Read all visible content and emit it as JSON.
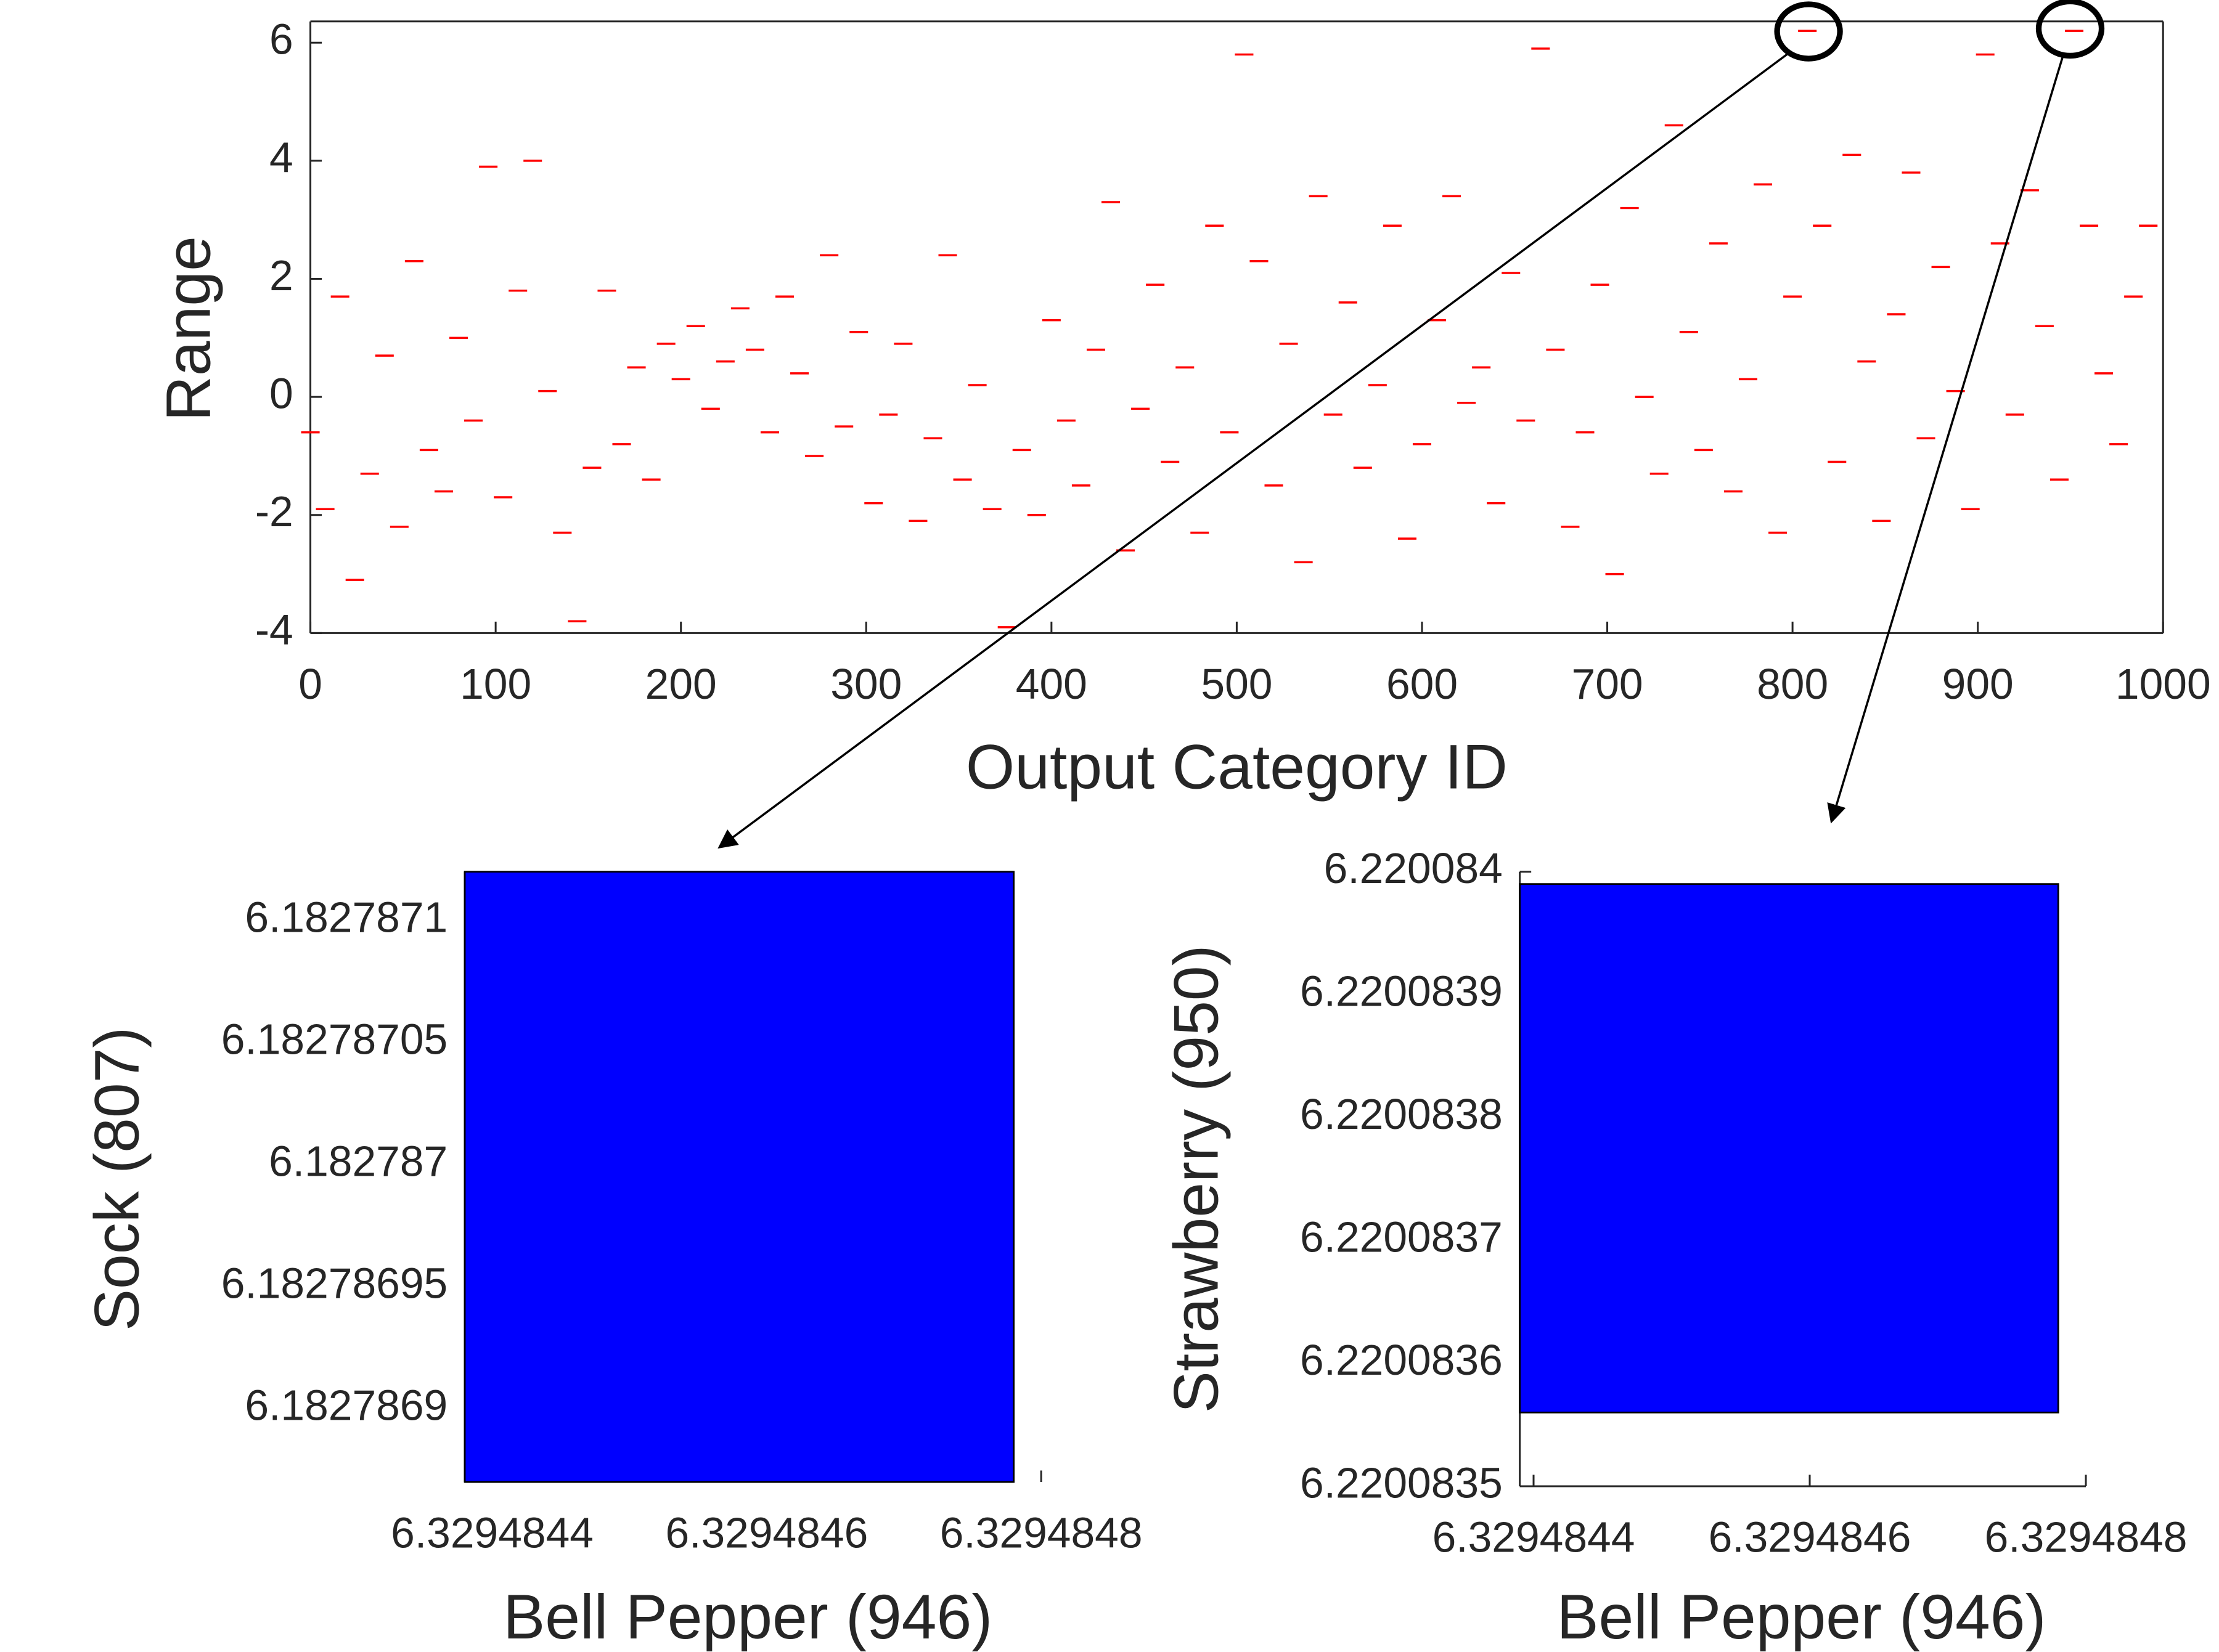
{
  "chart_data": [
    {
      "type": "scatter",
      "marker": "dash",
      "color": "#ff0000",
      "x_label": "Output Category ID",
      "y_label": "Range",
      "xlim": [
        0,
        1000
      ],
      "ylim": [
        -4,
        6.36
      ],
      "xticks": [
        0,
        100,
        200,
        300,
        400,
        500,
        600,
        700,
        800,
        900,
        1000
      ],
      "yticks": [
        -4,
        -2,
        0,
        2,
        4,
        6
      ],
      "x": [
        0,
        8,
        16,
        24,
        32,
        40,
        48,
        56,
        64,
        72,
        80,
        88,
        96,
        104,
        112,
        120,
        128,
        136,
        144,
        152,
        160,
        168,
        176,
        184,
        192,
        200,
        208,
        216,
        224,
        232,
        240,
        248,
        256,
        264,
        272,
        280,
        288,
        296,
        304,
        312,
        320,
        328,
        336,
        344,
        352,
        360,
        368,
        376,
        384,
        392,
        400,
        408,
        416,
        424,
        432,
        440,
        448,
        456,
        464,
        472,
        480,
        488,
        496,
        504,
        512,
        520,
        528,
        536,
        544,
        552,
        560,
        568,
        576,
        584,
        592,
        600,
        608,
        616,
        624,
        632,
        640,
        648,
        656,
        664,
        672,
        680,
        688,
        696,
        704,
        712,
        720,
        728,
        736,
        744,
        752,
        760,
        768,
        776,
        784,
        792,
        800,
        808,
        816,
        824,
        832,
        840,
        848,
        856,
        864,
        872,
        880,
        888,
        896,
        904,
        912,
        920,
        928,
        936,
        944,
        952,
        960,
        968,
        976,
        984,
        992
      ],
      "values": [
        -0.6,
        -1.9,
        1.7,
        -3.1,
        -1.3,
        0.7,
        -2.2,
        2.3,
        -0.9,
        -1.6,
        1.0,
        -0.4,
        3.9,
        -1.7,
        1.8,
        4.0,
        0.1,
        -2.3,
        -3.8,
        -1.2,
        1.8,
        -0.8,
        0.5,
        -1.4,
        0.9,
        0.3,
        1.2,
        -0.2,
        0.6,
        1.5,
        0.8,
        -0.6,
        1.7,
        0.4,
        -1.0,
        2.4,
        -0.5,
        1.1,
        -1.8,
        -0.3,
        0.9,
        -2.1,
        -0.7,
        2.4,
        -1.4,
        0.2,
        -1.9,
        -3.9,
        -0.9,
        -2.0,
        1.3,
        -0.4,
        -1.5,
        0.8,
        3.3,
        -2.6,
        -0.2,
        1.9,
        -1.1,
        0.5,
        -2.3,
        2.9,
        -0.6,
        5.8,
        2.3,
        -1.5,
        0.9,
        -2.8,
        3.4,
        -0.3,
        1.6,
        -1.2,
        0.2,
        2.9,
        -2.4,
        -0.8,
        1.3,
        3.4,
        -0.1,
        0.5,
        -1.8,
        2.1,
        -0.4,
        5.9,
        0.8,
        -2.2,
        -0.6,
        1.9,
        -3.0,
        3.2,
        0.0,
        -1.3,
        4.6,
        1.1,
        -0.9,
        2.6,
        -1.6,
        0.3,
        3.6,
        -2.3,
        1.7,
        6.2,
        2.9,
        -1.1,
        4.1,
        0.6,
        -2.1,
        1.4,
        3.8,
        -0.7,
        2.2,
        0.1,
        -1.9,
        5.8,
        2.6,
        -0.3,
        3.5,
        1.2,
        -1.4,
        6.2,
        2.9,
        0.4,
        -0.8,
        1.7,
        2.9
      ]
    },
    {
      "type": "interval",
      "color": "#0000ff",
      "x_label": "Bell Pepper (946)",
      "y_label": "Sock (807)",
      "xlim": [
        6.32948438,
        6.32948478
      ],
      "ylim": [
        6.18278687,
        6.18278712
      ],
      "xticks": [
        6.3294844,
        6.3294846,
        6.3294848
      ],
      "yticks": [
        6.1827869,
        6.18278695,
        6.182787,
        6.18278705,
        6.1827871
      ],
      "x_range": [
        6.32948438,
        6.32948478
      ],
      "y_range": [
        6.18278687,
        6.18278712
      ]
    },
    {
      "type": "interval",
      "color": "#0000ff",
      "x_label": "Bell Pepper (946)",
      "y_label": "Strawberry (950)",
      "xlim": [
        6.32948439,
        6.3294848
      ],
      "ylim": [
        6.2200835,
        6.220084
      ],
      "xticks": [
        6.3294844,
        6.3294846,
        6.3294848
      ],
      "yticks": [
        6.2200835,
        6.2200836,
        6.2200837,
        6.2200838,
        6.2200839,
        6.220084
      ],
      "x_range": [
        6.32948439,
        6.32948478
      ],
      "y_range": [
        6.22008356,
        6.22008399
      ]
    }
  ]
}
